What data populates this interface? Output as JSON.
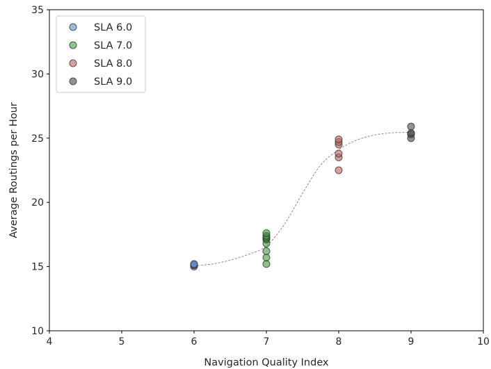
{
  "chart_data": {
    "type": "scatter",
    "title": "",
    "xlabel": "Navigation Quality Index",
    "ylabel": "Average Routings per Hour",
    "xlim": [
      4,
      10
    ],
    "ylim": [
      10,
      35
    ],
    "xticks": [
      4,
      5,
      6,
      7,
      8,
      9,
      10
    ],
    "yticks": [
      10,
      15,
      20,
      25,
      30,
      35
    ],
    "xtick_labels": [
      "4",
      "5",
      "6",
      "7",
      "8",
      "9",
      "10"
    ],
    "ytick_labels": [
      "10",
      "15",
      "20",
      "25",
      "30",
      "35"
    ],
    "grid": false,
    "legend_position": "top-left",
    "series": [
      {
        "name": "SLA 6.0",
        "color": "#5b8ac6",
        "x": [
          6,
          6,
          6,
          6
        ],
        "y": [
          15.0,
          15.1,
          15.15,
          15.2
        ]
      },
      {
        "name": "SLA 7.0",
        "color": "#3f9a3f",
        "x": [
          7,
          7,
          7,
          7,
          7,
          7,
          7,
          7,
          7
        ],
        "y": [
          15.2,
          15.7,
          16.2,
          16.8,
          17.1,
          17.2,
          17.3,
          17.4,
          17.6
        ]
      },
      {
        "name": "SLA 8.0",
        "color": "#c06060",
        "x": [
          8,
          8,
          8,
          8,
          8,
          8
        ],
        "y": [
          22.5,
          23.5,
          23.8,
          24.5,
          24.7,
          24.9
        ]
      },
      {
        "name": "SLA 9.0",
        "color": "#4a4a4a",
        "x": [
          9,
          9,
          9,
          9
        ],
        "y": [
          25.0,
          25.3,
          25.4,
          25.9
        ]
      }
    ],
    "trend_line": {
      "style": "dashed",
      "color": "#808080",
      "x": [
        6.0,
        6.25,
        6.5,
        6.75,
        7.0,
        7.25,
        7.5,
        7.75,
        8.0,
        8.25,
        8.5,
        8.75,
        9.0
      ],
      "y": [
        15.05,
        15.2,
        15.5,
        15.95,
        16.6,
        18.3,
        20.7,
        22.9,
        24.1,
        24.85,
        25.25,
        25.42,
        25.45
      ]
    }
  }
}
